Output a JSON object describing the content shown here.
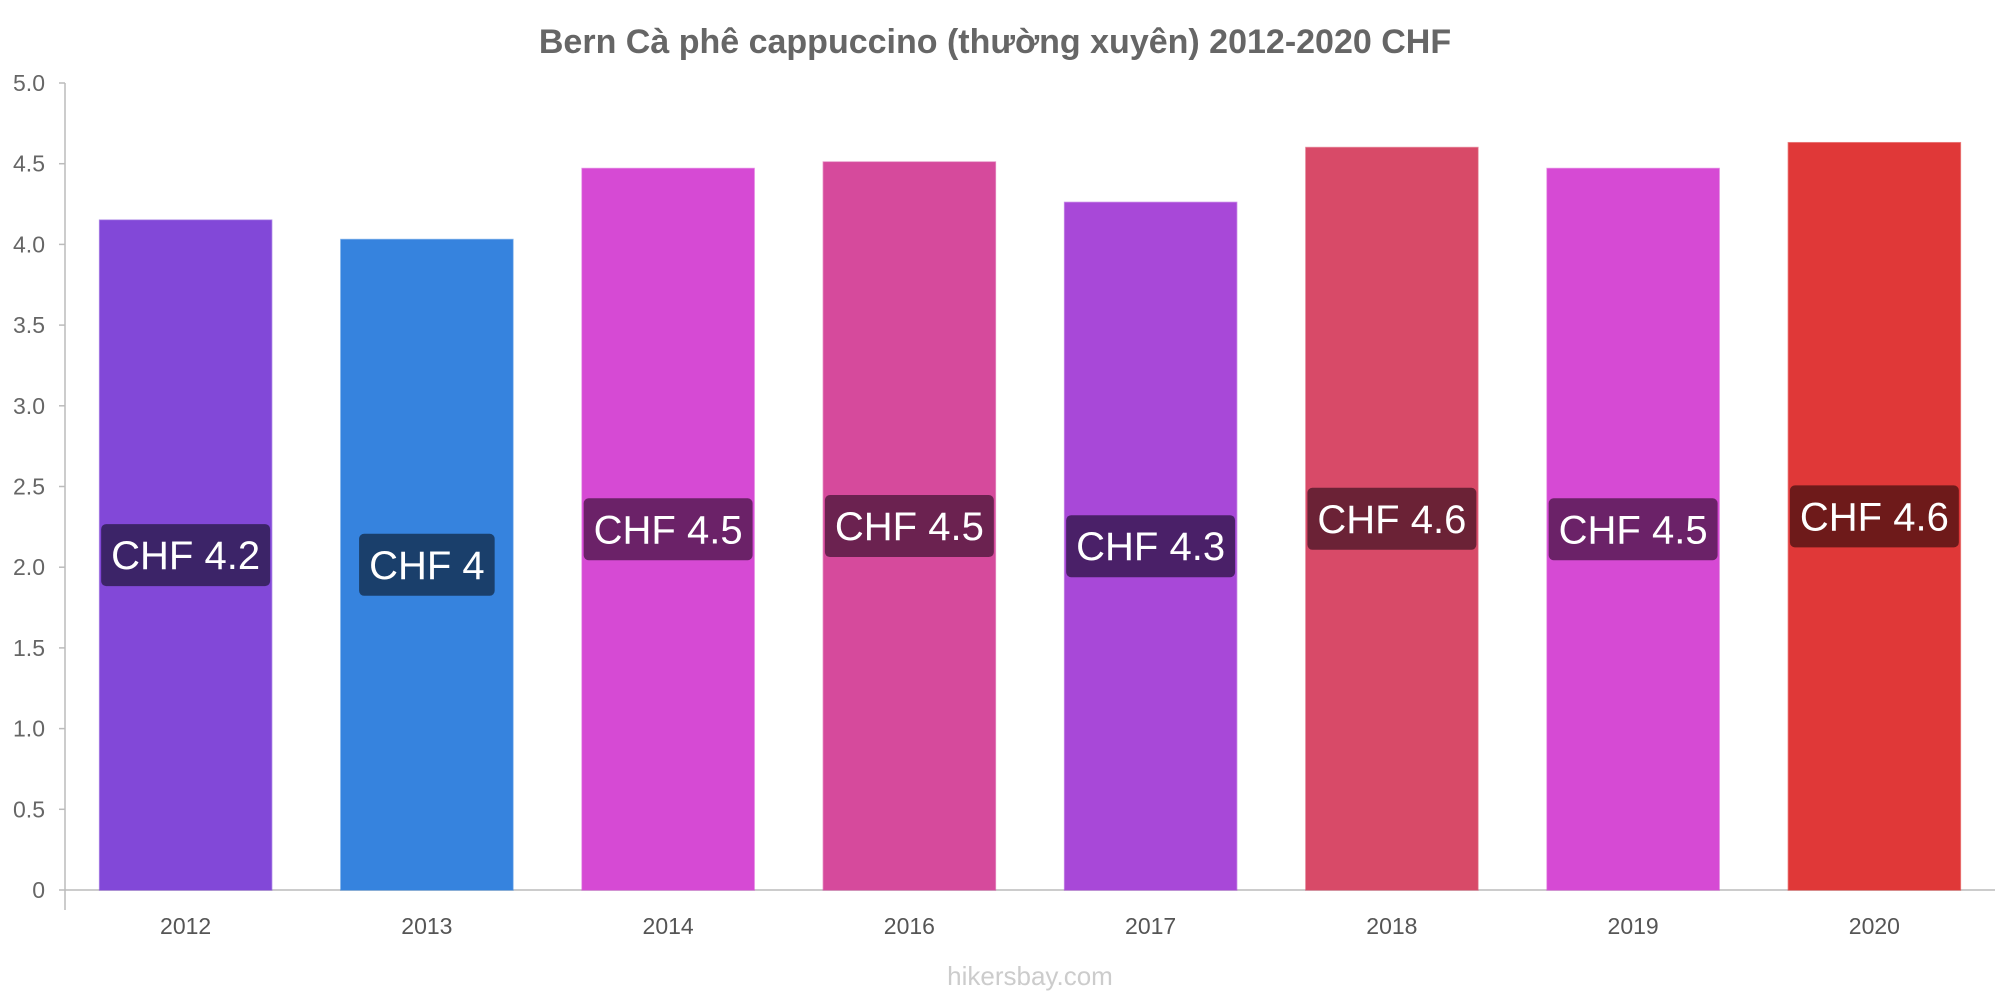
{
  "chart_data": {
    "type": "bar",
    "title": "Bern Cà phê cappuccino (thường xuyên) 2012-2020 CHF",
    "categories": [
      "2012",
      "2013",
      "2014",
      "2016",
      "2017",
      "2018",
      "2019",
      "2020"
    ],
    "values": [
      4.15,
      4.03,
      4.47,
      4.51,
      4.26,
      4.6,
      4.47,
      4.63
    ],
    "value_labels": [
      "CHF 4.2",
      "CHF 4",
      "CHF 4.5",
      "CHF 4.5",
      "CHF 4.3",
      "CHF 4.6",
      "CHF 4.5",
      "CHF 4.6"
    ],
    "bar_colors": [
      "#8248d8",
      "#3683de",
      "#d64ad4",
      "#d64a9c",
      "#a848d8",
      "#d84a68",
      "#d64ad4",
      "#e03838"
    ],
    "label_bg_colors": [
      "#3c2468",
      "#1a3f6b",
      "#6b2268",
      "#6b2250",
      "#4a2068",
      "#6b2236",
      "#6b2268",
      "#6e1a1a"
    ],
    "y_ticks": [
      "0",
      "0.5",
      "1.0",
      "1.5",
      "2.0",
      "2.5",
      "3.0",
      "3.5",
      "4.0",
      "4.5",
      "5.0"
    ],
    "ylim": [
      0,
      5
    ],
    "xlabel": "",
    "ylabel": "",
    "grid": false,
    "legend": "none"
  },
  "watermark": "hikersbay.com"
}
